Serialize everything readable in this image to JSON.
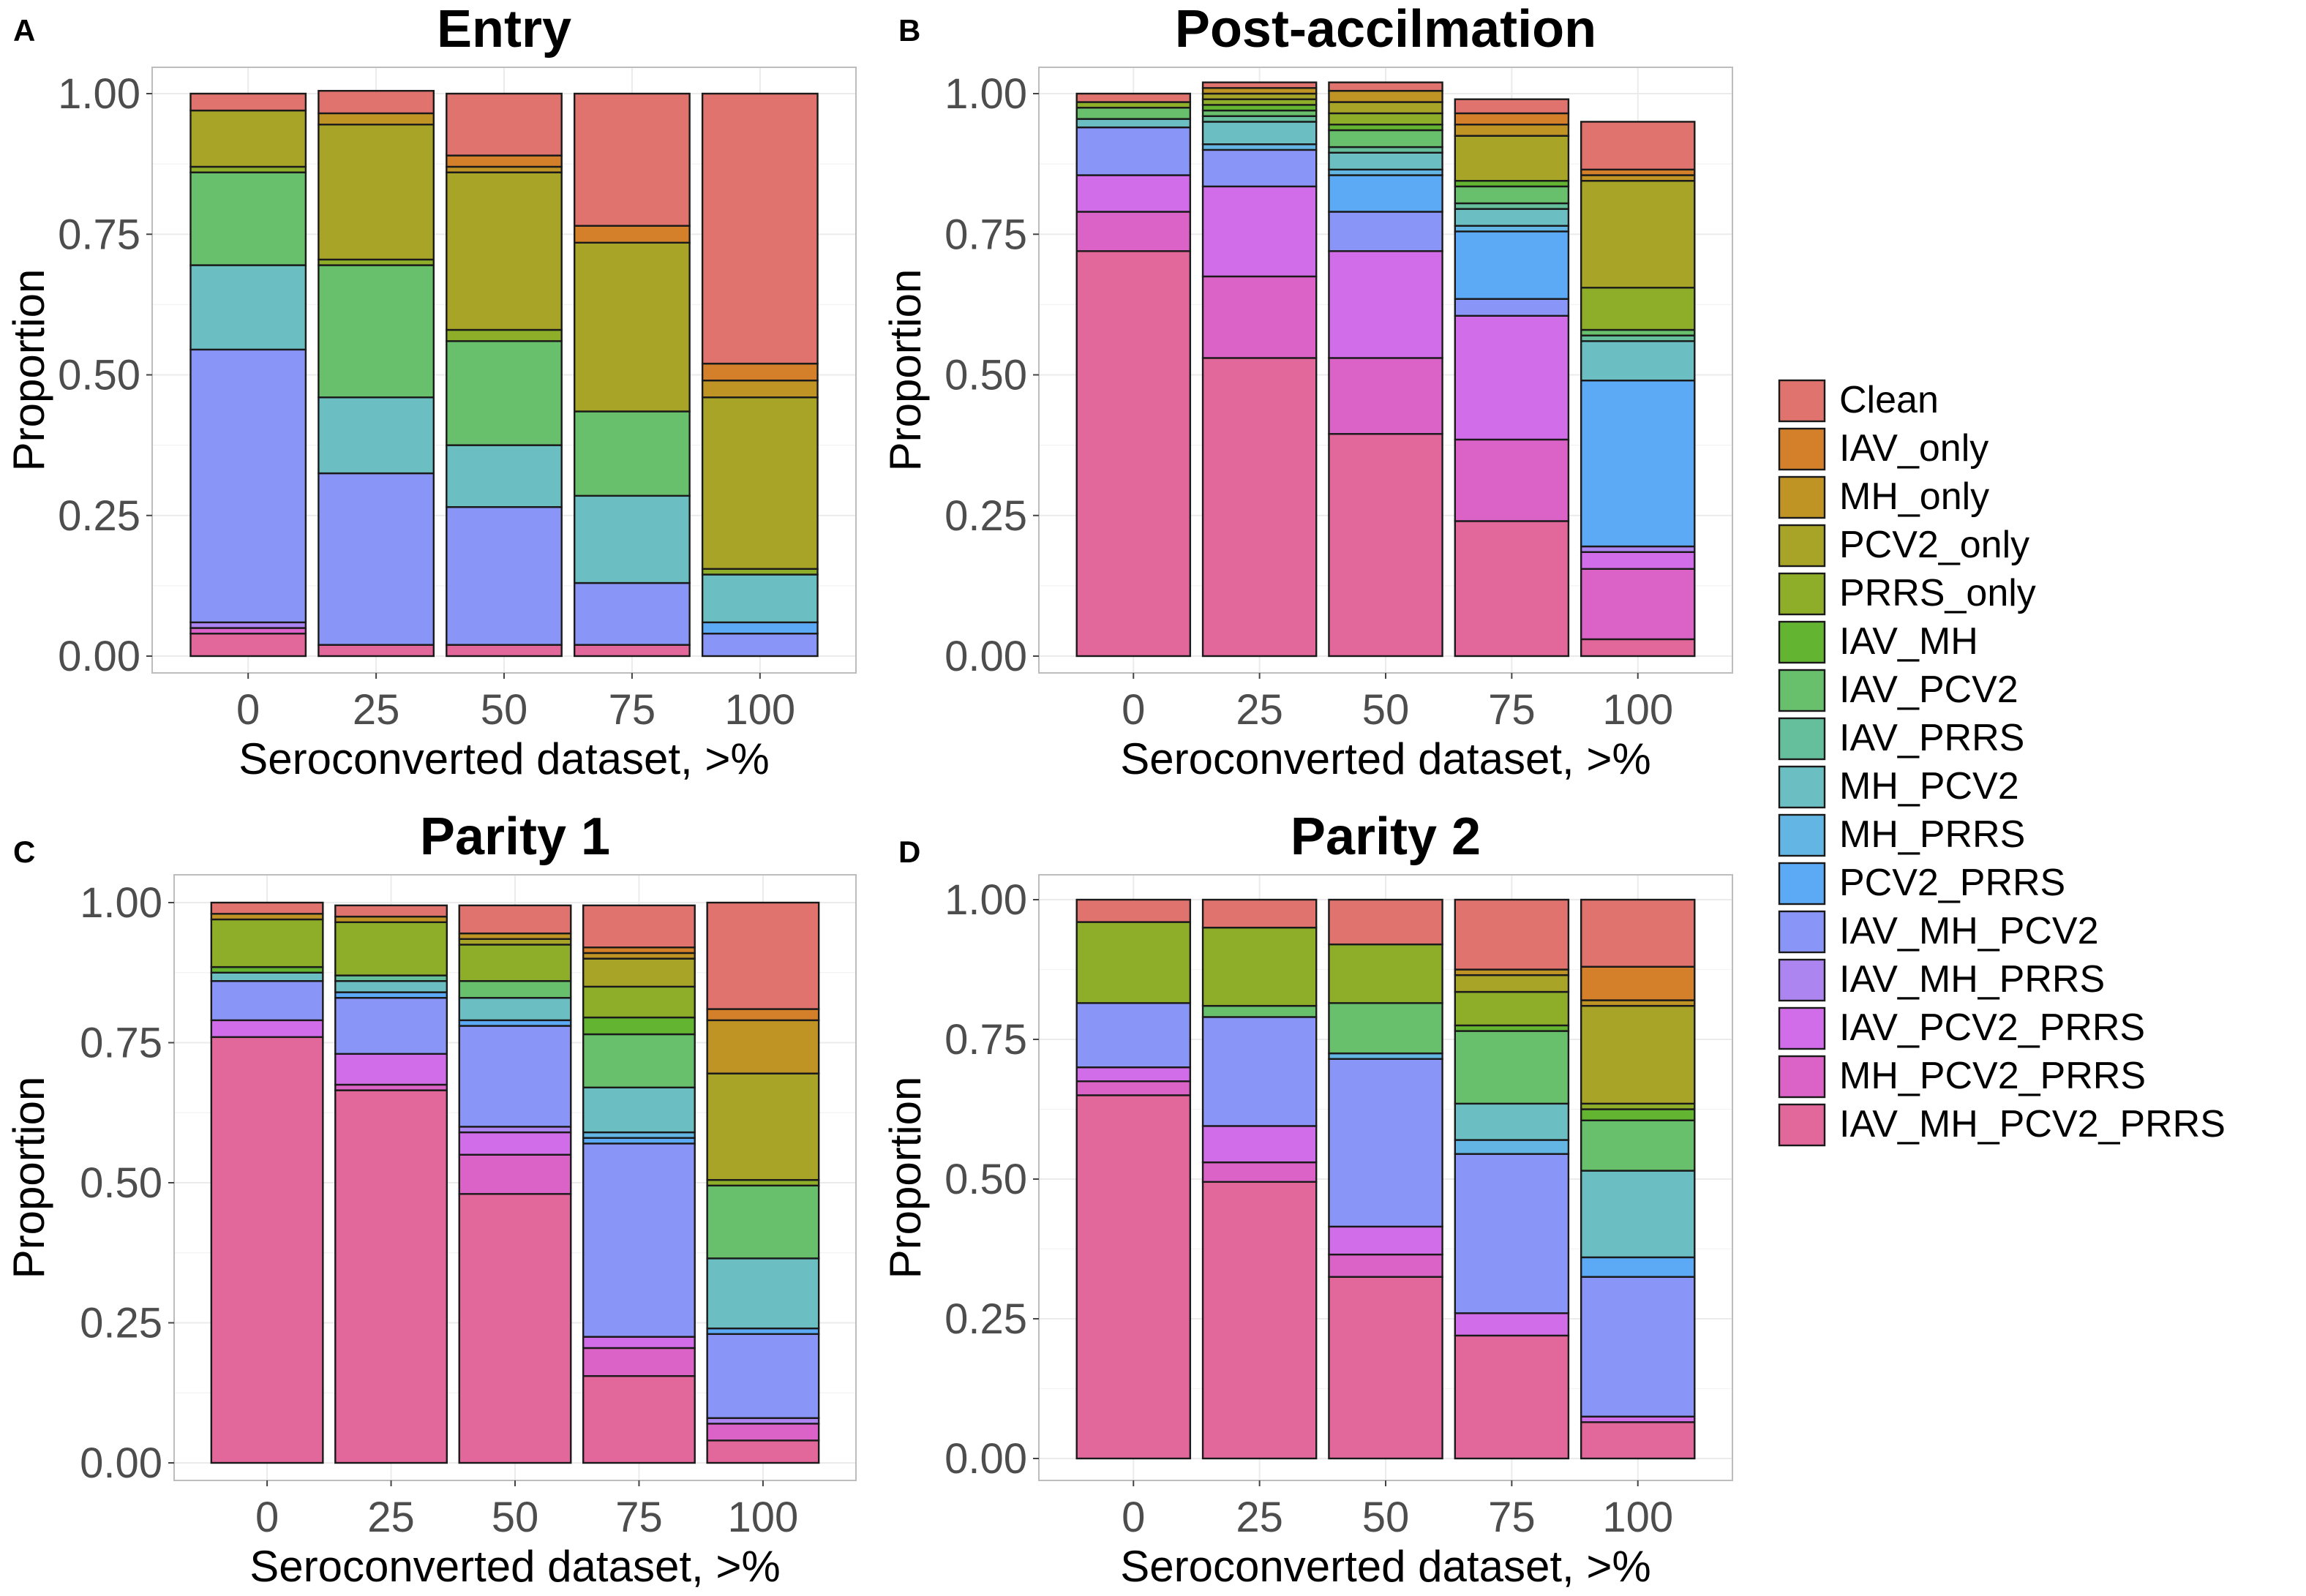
{
  "figure": {
    "categories_label": "Seroconverted dataset, >%",
    "y_label": "Proportion"
  },
  "legend": {
    "items": [
      {
        "name": "Clean",
        "color": "#E0736D"
      },
      {
        "name": "IAV_only",
        "color": "#D4802A"
      },
      {
        "name": "MH_only",
        "color": "#C09325"
      },
      {
        "name": "PCV2_only",
        "color": "#A8A427"
      },
      {
        "name": "PRRS_only",
        "color": "#8EAE2A"
      },
      {
        "name": "IAV_MH",
        "color": "#63B531"
      },
      {
        "name": "IAV_PCV2",
        "color": "#68BF6C"
      },
      {
        "name": "IAV_PRRS",
        "color": "#65BE9C"
      },
      {
        "name": "MH_PCV2",
        "color": "#6BBFC3"
      },
      {
        "name": "MH_PRRS",
        "color": "#63B6E3"
      },
      {
        "name": "PCV2_PRRS",
        "color": "#5CA9F5"
      },
      {
        "name": "IAV_MH_PCV2",
        "color": "#8A95F8"
      },
      {
        "name": "IAV_MH_PRRS",
        "color": "#AC85F1"
      },
      {
        "name": "IAV_PCV2_PRRS",
        "color": "#D16DE8"
      },
      {
        "name": "MH_PCV2_PRRS",
        "color": "#DB62C6"
      },
      {
        "name": "IAV_MH_PCV2_PRRS",
        "color": "#E2679A"
      }
    ]
  },
  "chart_data": [
    {
      "panel": "A",
      "title": "Entry",
      "type": "bar",
      "stacked": true,
      "xlabel": "Seroconverted dataset, >%",
      "ylabel": "Proportion",
      "ylim": [
        0,
        1
      ],
      "yticks": [
        "0.00",
        "0.25",
        "0.50",
        "0.75",
        "1.00"
      ],
      "categories": [
        "0",
        "25",
        "50",
        "75",
        "100"
      ],
      "series": [
        {
          "name": "IAV_MH_PCV2_PRRS",
          "values": [
            0.04,
            0.02,
            0.02,
            0.02,
            0.0
          ]
        },
        {
          "name": "MH_PCV2_PRRS",
          "values": [
            0.01,
            0.0,
            0.0,
            0.0,
            0.0
          ]
        },
        {
          "name": "IAV_PCV2_PRRS",
          "values": [
            0.0,
            0.0,
            0.0,
            0.0,
            0.0
          ]
        },
        {
          "name": "IAV_MH_PRRS",
          "values": [
            0.01,
            0.0,
            0.0,
            0.0,
            0.0
          ]
        },
        {
          "name": "IAV_MH_PCV2",
          "values": [
            0.485,
            0.305,
            0.245,
            0.11,
            0.04
          ]
        },
        {
          "name": "PCV2_PRRS",
          "values": [
            0.0,
            0.0,
            0.0,
            0.0,
            0.02
          ]
        },
        {
          "name": "MH_PRRS",
          "values": [
            0.0,
            0.0,
            0.0,
            0.0,
            0.0
          ]
        },
        {
          "name": "MH_PCV2",
          "values": [
            0.15,
            0.135,
            0.11,
            0.155,
            0.085
          ]
        },
        {
          "name": "IAV_PRRS",
          "values": [
            0.0,
            0.0,
            0.0,
            0.0,
            0.0
          ]
        },
        {
          "name": "IAV_PCV2",
          "values": [
            0.165,
            0.235,
            0.185,
            0.15,
            0.0
          ]
        },
        {
          "name": "IAV_MH",
          "values": [
            0.0,
            0.0,
            0.0,
            0.0,
            0.0
          ]
        },
        {
          "name": "PRRS_only",
          "values": [
            0.01,
            0.01,
            0.02,
            0.0,
            0.01
          ]
        },
        {
          "name": "PCV2_only",
          "values": [
            0.1,
            0.24,
            0.28,
            0.3,
            0.305
          ]
        },
        {
          "name": "MH_only",
          "values": [
            0.0,
            0.02,
            0.01,
            0.0,
            0.03
          ]
        },
        {
          "name": "IAV_only",
          "values": [
            0.0,
            0.0,
            0.02,
            0.03,
            0.03
          ]
        },
        {
          "name": "Clean",
          "values": [
            0.03,
            0.04,
            0.11,
            0.235,
            0.48
          ]
        }
      ]
    },
    {
      "panel": "B",
      "title": "Post-accilmation",
      "type": "bar",
      "stacked": true,
      "xlabel": "Seroconverted dataset, >%",
      "ylabel": "Proportion",
      "ylim": [
        0,
        1
      ],
      "yticks": [
        "0.00",
        "0.25",
        "0.50",
        "0.75",
        "1.00"
      ],
      "categories": [
        "0",
        "25",
        "50",
        "75",
        "100"
      ],
      "series": [
        {
          "name": "IAV_MH_PCV2_PRRS",
          "values": [
            0.72,
            0.53,
            0.395,
            0.24,
            0.03
          ]
        },
        {
          "name": "MH_PCV2_PRRS",
          "values": [
            0.07,
            0.145,
            0.135,
            0.145,
            0.125
          ]
        },
        {
          "name": "IAV_PCV2_PRRS",
          "values": [
            0.065,
            0.16,
            0.19,
            0.22,
            0.03
          ]
        },
        {
          "name": "IAV_MH_PRRS",
          "values": [
            0.0,
            0.0,
            0.0,
            0.0,
            0.01
          ]
        },
        {
          "name": "IAV_MH_PCV2",
          "values": [
            0.085,
            0.065,
            0.07,
            0.03,
            0.0
          ]
        },
        {
          "name": "PCV2_PRRS",
          "values": [
            0.0,
            0.0,
            0.065,
            0.12,
            0.295
          ]
        },
        {
          "name": "MH_PRRS",
          "values": [
            0.0,
            0.01,
            0.01,
            0.01,
            0.0
          ]
        },
        {
          "name": "MH_PCV2",
          "values": [
            0.015,
            0.04,
            0.03,
            0.03,
            0.07
          ]
        },
        {
          "name": "IAV_PRRS",
          "values": [
            0.0,
            0.01,
            0.01,
            0.01,
            0.01
          ]
        },
        {
          "name": "IAV_PCV2",
          "values": [
            0.02,
            0.01,
            0.03,
            0.03,
            0.01
          ]
        },
        {
          "name": "IAV_MH",
          "values": [
            0.0,
            0.01,
            0.01,
            0.01,
            0.0
          ]
        },
        {
          "name": "PRRS_only",
          "values": [
            0.01,
            0.01,
            0.02,
            0.0,
            0.075
          ]
        },
        {
          "name": "PCV2_only",
          "values": [
            0.0,
            0.01,
            0.02,
            0.08,
            0.19
          ]
        },
        {
          "name": "MH_only",
          "values": [
            0.0,
            0.01,
            0.02,
            0.02,
            0.01
          ]
        },
        {
          "name": "IAV_only",
          "values": [
            0.0,
            0.0,
            0.0,
            0.02,
            0.01
          ]
        },
        {
          "name": "Clean",
          "values": [
            0.015,
            0.01,
            0.015,
            0.025,
            0.085
          ]
        }
      ]
    },
    {
      "panel": "C",
      "title": "Parity 1",
      "type": "bar",
      "stacked": true,
      "xlabel": "Seroconverted dataset, >%",
      "ylabel": "Proportion",
      "ylim": [
        0,
        1
      ],
      "yticks": [
        "0.00",
        "0.25",
        "0.50",
        "0.75",
        "1.00"
      ],
      "categories": [
        "0",
        "25",
        "50",
        "75",
        "100"
      ],
      "series": [
        {
          "name": "IAV_MH_PCV2_PRRS",
          "values": [
            0.76,
            0.665,
            0.48,
            0.155,
            0.04
          ]
        },
        {
          "name": "MH_PCV2_PRRS",
          "values": [
            0.0,
            0.01,
            0.07,
            0.05,
            0.03
          ]
        },
        {
          "name": "IAV_PCV2_PRRS",
          "values": [
            0.03,
            0.055,
            0.04,
            0.02,
            0.0
          ]
        },
        {
          "name": "IAV_MH_PRRS",
          "values": [
            0.0,
            0.0,
            0.01,
            0.0,
            0.01
          ]
        },
        {
          "name": "IAV_MH_PCV2",
          "values": [
            0.07,
            0.1,
            0.18,
            0.345,
            0.15
          ]
        },
        {
          "name": "PCV2_PRRS",
          "values": [
            0.0,
            0.01,
            0.01,
            0.01,
            0.01
          ]
        },
        {
          "name": "MH_PRRS",
          "values": [
            0.0,
            0.0,
            0.0,
            0.01,
            0.0
          ]
        },
        {
          "name": "MH_PCV2",
          "values": [
            0.015,
            0.02,
            0.04,
            0.08,
            0.125
          ]
        },
        {
          "name": "IAV_PRRS",
          "values": [
            0.0,
            0.01,
            0.0,
            0.0,
            0.0
          ]
        },
        {
          "name": "IAV_PCV2",
          "values": [
            0.0,
            0.0,
            0.03,
            0.095,
            0.13
          ]
        },
        {
          "name": "IAV_MH",
          "values": [
            0.01,
            0.0,
            0.0,
            0.03,
            0.0
          ]
        },
        {
          "name": "PRRS_only",
          "values": [
            0.085,
            0.095,
            0.065,
            0.055,
            0.01
          ]
        },
        {
          "name": "PCV2_only",
          "values": [
            0.0,
            0.0,
            0.01,
            0.05,
            0.19
          ]
        },
        {
          "name": "MH_only",
          "values": [
            0.01,
            0.01,
            0.01,
            0.01,
            0.095
          ]
        },
        {
          "name": "IAV_only",
          "values": [
            0.0,
            0.0,
            0.0,
            0.01,
            0.02
          ]
        },
        {
          "name": "Clean",
          "values": [
            0.02,
            0.02,
            0.05,
            0.075,
            0.19
          ]
        }
      ]
    },
    {
      "panel": "D",
      "title": "Parity 2",
      "type": "bar",
      "stacked": true,
      "xlabel": "Seroconverted dataset, >%",
      "ylabel": "Proportion",
      "ylim": [
        0,
        1
      ],
      "yticks": [
        "0.00",
        "0.25",
        "0.50",
        "0.75",
        "1.00"
      ],
      "categories": [
        "0",
        "25",
        "50",
        "75",
        "100"
      ],
      "series": [
        {
          "name": "IAV_MH_PCV2_PRRS",
          "values": [
            0.65,
            0.495,
            0.325,
            0.22,
            0.065
          ]
        },
        {
          "name": "MH_PCV2_PRRS",
          "values": [
            0.025,
            0.035,
            0.04,
            0.0,
            0.0
          ]
        },
        {
          "name": "IAV_PCV2_PRRS",
          "values": [
            0.025,
            0.065,
            0.05,
            0.04,
            0.01
          ]
        },
        {
          "name": "IAV_MH_PRRS",
          "values": [
            0.0,
            0.0,
            0.0,
            0.0,
            0.0
          ]
        },
        {
          "name": "IAV_MH_PCV2",
          "values": [
            0.115,
            0.195,
            0.3,
            0.285,
            0.25
          ]
        },
        {
          "name": "PCV2_PRRS",
          "values": [
            0.0,
            0.0,
            0.0,
            0.0,
            0.035
          ]
        },
        {
          "name": "MH_PRRS",
          "values": [
            0.0,
            0.0,
            0.01,
            0.025,
            0.0
          ]
        },
        {
          "name": "MH_PCV2",
          "values": [
            0.0,
            0.0,
            0.0,
            0.065,
            0.155
          ]
        },
        {
          "name": "IAV_PRRS",
          "values": [
            0.0,
            0.0,
            0.0,
            0.0,
            0.0
          ]
        },
        {
          "name": "IAV_PCV2",
          "values": [
            0.0,
            0.02,
            0.09,
            0.13,
            0.09
          ]
        },
        {
          "name": "IAV_MH",
          "values": [
            0.0,
            0.0,
            0.0,
            0.01,
            0.02
          ]
        },
        {
          "name": "PRRS_only",
          "values": [
            0.145,
            0.14,
            0.105,
            0.06,
            0.01
          ]
        },
        {
          "name": "PCV2_only",
          "values": [
            0.0,
            0.0,
            0.0,
            0.03,
            0.175
          ]
        },
        {
          "name": "MH_only",
          "values": [
            0.0,
            0.0,
            0.0,
            0.01,
            0.01
          ]
        },
        {
          "name": "IAV_only",
          "values": [
            0.0,
            0.0,
            0.0,
            0.0,
            0.06
          ]
        },
        {
          "name": "Clean",
          "values": [
            0.04,
            0.05,
            0.08,
            0.125,
            0.12
          ]
        }
      ]
    }
  ]
}
